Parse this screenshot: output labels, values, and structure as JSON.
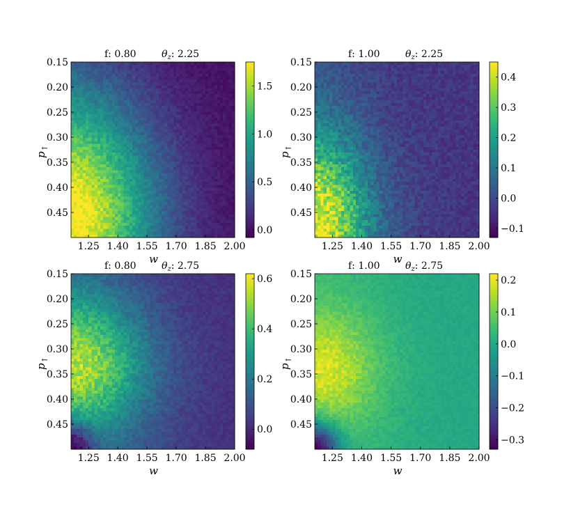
{
  "chart_data": [
    {
      "type": "heatmap",
      "title_left": "f: 0.80",
      "title_right_sym": "θ",
      "title_right_sub": "z",
      "title_right_val": ": 2.25",
      "xlabel": "w",
      "ylabel_main": "p",
      "ylabel_sub": "↑",
      "xlim": [
        1.16,
        2.0
      ],
      "ylim": [
        0.15,
        0.5
      ],
      "xticks": [
        1.25,
        1.4,
        1.55,
        1.7,
        1.85,
        2.0
      ],
      "xtick_labels": [
        "1.25",
        "1.40",
        "1.55",
        "1.70",
        "1.85",
        "2.00"
      ],
      "yticks": [
        0.15,
        0.2,
        0.25,
        0.3,
        0.35,
        0.4,
        0.45
      ],
      "ytick_labels": [
        "0.15",
        "0.20",
        "0.25",
        "0.30",
        "0.35",
        "0.40",
        "0.45"
      ],
      "colorbar": {
        "min": -0.08,
        "max": 1.75,
        "ticks": [
          0.0,
          0.5,
          1.0,
          1.5
        ],
        "tick_labels": [
          "0.0",
          "0.5",
          "1.0",
          "1.5"
        ]
      },
      "hotspot": {
        "w": 1.18,
        "p": 0.45,
        "peak": 1.65,
        "spread_w": 0.3,
        "spread_p": 0.17,
        "diag": 0.55,
        "base": 0.0,
        "noise": 0.12,
        "dark_corner": 0.0
      },
      "colormap": "viridis"
    },
    {
      "type": "heatmap",
      "title_left": "f: 1.00",
      "title_right_sym": "θ",
      "title_right_sub": "z",
      "title_right_val": ": 2.25",
      "xlabel": "w",
      "ylabel_main": "p",
      "ylabel_sub": "↑",
      "xlim": [
        1.16,
        2.0
      ],
      "ylim": [
        0.15,
        0.5
      ],
      "xticks": [
        1.25,
        1.4,
        1.55,
        1.7,
        1.85,
        2.0
      ],
      "xtick_labels": [
        "1.25",
        "1.40",
        "1.55",
        "1.70",
        "1.85",
        "2.00"
      ],
      "yticks": [
        0.15,
        0.2,
        0.25,
        0.3,
        0.35,
        0.4,
        0.45
      ],
      "ytick_labels": [
        "0.15",
        "0.20",
        "0.25",
        "0.30",
        "0.35",
        "0.40",
        "0.45"
      ],
      "colorbar": {
        "min": -0.13,
        "max": 0.45,
        "ticks": [
          -0.1,
          0.0,
          0.1,
          0.2,
          0.3,
          0.4
        ],
        "tick_labels": [
          "−0.1",
          "0.0",
          "0.1",
          "0.2",
          "0.3",
          "0.4"
        ]
      },
      "hotspot": {
        "w": 1.18,
        "p": 0.47,
        "peak": 0.4,
        "spread_w": 0.18,
        "spread_p": 0.12,
        "diag": 0.4,
        "base": -0.04,
        "noise": 0.07,
        "dark_corner": 0.0
      },
      "colormap": "viridis"
    },
    {
      "type": "heatmap",
      "title_left": "f: 0.80",
      "title_right_sym": "θ",
      "title_right_sub": "z",
      "title_right_val": ": 2.75",
      "xlabel": "w",
      "ylabel_main": "p",
      "ylabel_sub": "↑",
      "xlim": [
        1.16,
        2.0
      ],
      "ylim": [
        0.15,
        0.5
      ],
      "xticks": [
        1.25,
        1.4,
        1.55,
        1.7,
        1.85,
        2.0
      ],
      "xtick_labels": [
        "1.25",
        "1.40",
        "1.55",
        "1.70",
        "1.85",
        "2.00"
      ],
      "yticks": [
        0.15,
        0.2,
        0.25,
        0.3,
        0.35,
        0.4,
        0.45
      ],
      "ytick_labels": [
        "0.15",
        "0.20",
        "0.25",
        "0.30",
        "0.35",
        "0.40",
        "0.45"
      ],
      "colorbar": {
        "min": -0.08,
        "max": 0.62,
        "ticks": [
          0.0,
          0.2,
          0.4,
          0.6
        ],
        "tick_labels": [
          "0.0",
          "0.2",
          "0.4",
          "0.6"
        ]
      },
      "hotspot": {
        "w": 1.2,
        "p": 0.33,
        "peak": 0.5,
        "spread_w": 0.25,
        "spread_p": 0.1,
        "diag": 0.5,
        "base": 0.02,
        "noise": 0.05,
        "dark_corner": -0.08
      },
      "colormap": "viridis"
    },
    {
      "type": "heatmap",
      "title_left": "f: 1.00",
      "title_right_sym": "θ",
      "title_right_sub": "z",
      "title_right_val": ": 2.75",
      "xlabel": "w",
      "ylabel_main": "p",
      "ylabel_sub": "↑",
      "xlim": [
        1.16,
        2.0
      ],
      "ylim": [
        0.15,
        0.5
      ],
      "xticks": [
        1.25,
        1.4,
        1.55,
        1.7,
        1.85,
        2.0
      ],
      "xtick_labels": [
        "1.25",
        "1.40",
        "1.55",
        "1.70",
        "1.85",
        "2.00"
      ],
      "yticks": [
        0.15,
        0.2,
        0.25,
        0.3,
        0.35,
        0.4,
        0.45
      ],
      "ytick_labels": [
        "0.15",
        "0.20",
        "0.25",
        "0.30",
        "0.35",
        "0.40",
        "0.45"
      ],
      "colorbar": {
        "min": -0.33,
        "max": 0.22,
        "ticks": [
          -0.3,
          -0.2,
          -0.1,
          0.0,
          0.1,
          0.2
        ],
        "tick_labels": [
          "−0.3",
          "−0.2",
          "−0.1",
          "0.0",
          "0.1",
          "0.2"
        ]
      },
      "hotspot": {
        "w": 1.22,
        "p": 0.34,
        "peak": 0.17,
        "spread_w": 0.18,
        "spread_p": 0.08,
        "diag": 0.2,
        "base": 0.0,
        "noise": 0.025,
        "dark_corner": -0.33
      },
      "colormap": "viridis"
    }
  ]
}
